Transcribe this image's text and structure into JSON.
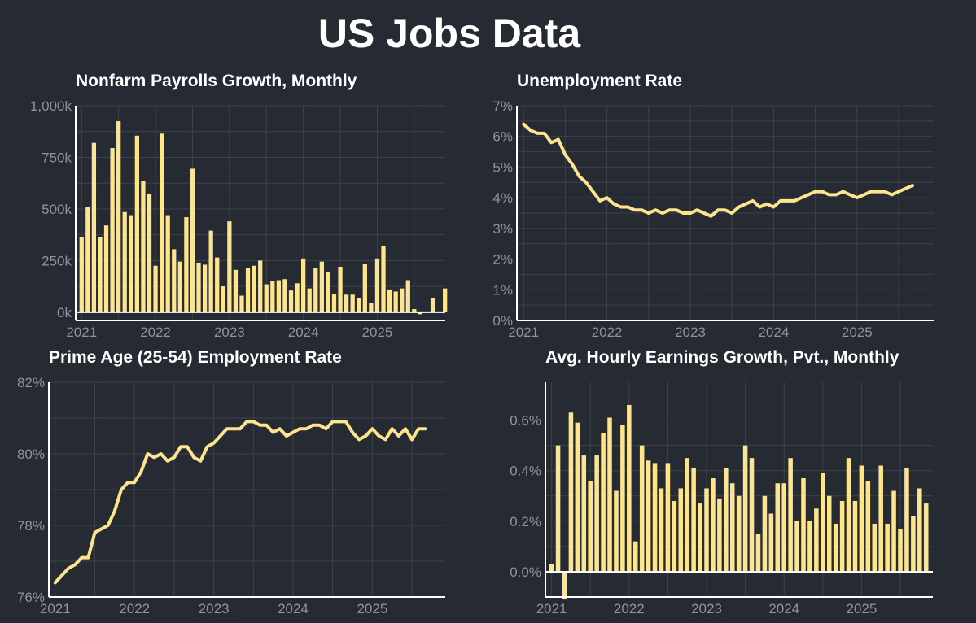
{
  "title": "US Jobs Data",
  "colors": {
    "background": "#262a33",
    "series": "#fde58e",
    "grid": "#3d424d",
    "tick": "#8f939b",
    "title": "#ffffff"
  },
  "chart_data": [
    {
      "id": "payrolls",
      "type": "bar",
      "title": "Nonfarm Payrolls Growth, Monthly",
      "xlabel": "",
      "ylabel": "",
      "ylim": [
        -40,
        1000
      ],
      "xlim": [
        2020.92,
        2025.92
      ],
      "yticks": [
        0,
        250,
        500,
        750,
        1000
      ],
      "ytick_labels": [
        "0k",
        "250k",
        "500k",
        "750k",
        "1,000k"
      ],
      "xticks": [
        2021,
        2022,
        2023,
        2024,
        2025
      ],
      "xtick_labels": [
        "2021",
        "2022",
        "2023",
        "2024",
        "2025"
      ],
      "zero_line": true,
      "bar_width": 0.058,
      "x_start": 2021.0,
      "x_step": 0.08333,
      "values": [
        365,
        510,
        820,
        365,
        420,
        795,
        925,
        485,
        470,
        855,
        635,
        575,
        225,
        865,
        470,
        305,
        245,
        460,
        695,
        240,
        230,
        395,
        265,
        125,
        440,
        205,
        80,
        215,
        225,
        250,
        135,
        150,
        155,
        160,
        105,
        140,
        260,
        115,
        215,
        245,
        195,
        90,
        220,
        85,
        85,
        70,
        235,
        45,
        260,
        320,
        110,
        100,
        115,
        155,
        15,
        -10,
        null,
        70,
        null,
        115
      ]
    },
    {
      "id": "unemployment",
      "type": "line",
      "title": "Unemployment Rate",
      "xlabel": "",
      "ylabel": "",
      "ylim": [
        0,
        7
      ],
      "xlim": [
        2020.92,
        2025.92
      ],
      "yticks": [
        0,
        1,
        2,
        3,
        4,
        5,
        6,
        7
      ],
      "ytick_labels": [
        "0%",
        "1%",
        "2%",
        "3%",
        "4%",
        "5%",
        "6%",
        "7%"
      ],
      "xticks": [
        2021,
        2022,
        2023,
        2024,
        2025
      ],
      "xtick_labels": [
        "2021",
        "2022",
        "2023",
        "2024",
        "2025"
      ],
      "x_start": 2021.0,
      "x_step": 0.08333,
      "values": [
        6.4,
        6.2,
        6.1,
        6.1,
        5.8,
        5.9,
        5.4,
        5.1,
        4.7,
        4.5,
        4.2,
        3.9,
        4.0,
        3.8,
        3.7,
        3.7,
        3.6,
        3.6,
        3.5,
        3.6,
        3.5,
        3.6,
        3.6,
        3.5,
        3.5,
        3.6,
        3.5,
        3.4,
        3.6,
        3.6,
        3.5,
        3.7,
        3.8,
        3.9,
        3.7,
        3.8,
        3.7,
        3.9,
        3.9,
        3.9,
        4.0,
        4.1,
        4.2,
        4.2,
        4.1,
        4.1,
        4.2,
        4.1,
        4.0,
        4.1,
        4.2,
        4.2,
        4.2,
        4.1,
        4.2,
        4.3,
        4.4
      ]
    },
    {
      "id": "prime_age",
      "type": "line",
      "title": "Prime Age (25-54) Employment Rate",
      "xlabel": "",
      "ylabel": "",
      "ylim": [
        76,
        82
      ],
      "xlim": [
        2020.92,
        2025.92
      ],
      "yticks": [
        76,
        78,
        80,
        82
      ],
      "ytick_labels": [
        "76%",
        "78%",
        "80%",
        "82%"
      ],
      "xticks": [
        2021,
        2022,
        2023,
        2024,
        2025
      ],
      "xtick_labels": [
        "2021",
        "2022",
        "2023",
        "2024",
        "2025"
      ],
      "x_start": 2021.0,
      "x_step": 0.08333,
      "values": [
        76.4,
        76.6,
        76.8,
        76.9,
        77.1,
        77.1,
        77.8,
        77.9,
        78.0,
        78.4,
        79.0,
        79.2,
        79.2,
        79.5,
        80.0,
        79.9,
        80.0,
        79.8,
        79.9,
        80.2,
        80.2,
        79.9,
        79.8,
        80.2,
        80.3,
        80.5,
        80.7,
        80.7,
        80.7,
        80.9,
        80.9,
        80.8,
        80.8,
        80.6,
        80.7,
        80.5,
        80.6,
        80.7,
        80.7,
        80.8,
        80.8,
        80.7,
        80.9,
        80.9,
        80.9,
        80.6,
        80.4,
        80.5,
        80.7,
        80.5,
        80.4,
        80.7,
        80.5,
        80.7,
        80.4,
        80.7,
        80.7
      ]
    },
    {
      "id": "earnings",
      "type": "bar",
      "title": "Avg. Hourly Earnings Growth, Pvt., Monthly",
      "xlabel": "",
      "ylabel": "",
      "ylim": [
        -0.1,
        0.75
      ],
      "xlim": [
        2020.92,
        2025.92
      ],
      "yticks": [
        0.0,
        0.2,
        0.4,
        0.6
      ],
      "ytick_labels": [
        "0.0%",
        "0.2%",
        "0.4%",
        "0.6%"
      ],
      "xticks": [
        2021,
        2022,
        2023,
        2024,
        2025
      ],
      "xtick_labels": [
        "2021",
        "2022",
        "2023",
        "2024",
        "2025"
      ],
      "zero_line": true,
      "bar_width": 0.058,
      "x_start": 2021.0,
      "x_step": 0.08333,
      "values": [
        0.03,
        0.5,
        -0.11,
        0.63,
        0.59,
        0.46,
        0.36,
        0.46,
        0.55,
        0.61,
        0.32,
        0.58,
        0.66,
        0.12,
        0.5,
        0.44,
        0.43,
        0.33,
        0.43,
        0.28,
        0.33,
        0.45,
        0.41,
        0.27,
        0.33,
        0.37,
        0.29,
        0.41,
        0.35,
        0.3,
        0.5,
        0.45,
        0.15,
        0.3,
        0.23,
        0.35,
        0.35,
        0.45,
        0.2,
        0.37,
        0.2,
        0.25,
        0.39,
        0.3,
        0.19,
        0.28,
        0.45,
        0.28,
        0.42,
        0.36,
        0.19,
        0.42,
        0.19,
        0.32,
        0.17,
        0.41,
        0.22,
        0.33,
        0.27
      ]
    }
  ]
}
